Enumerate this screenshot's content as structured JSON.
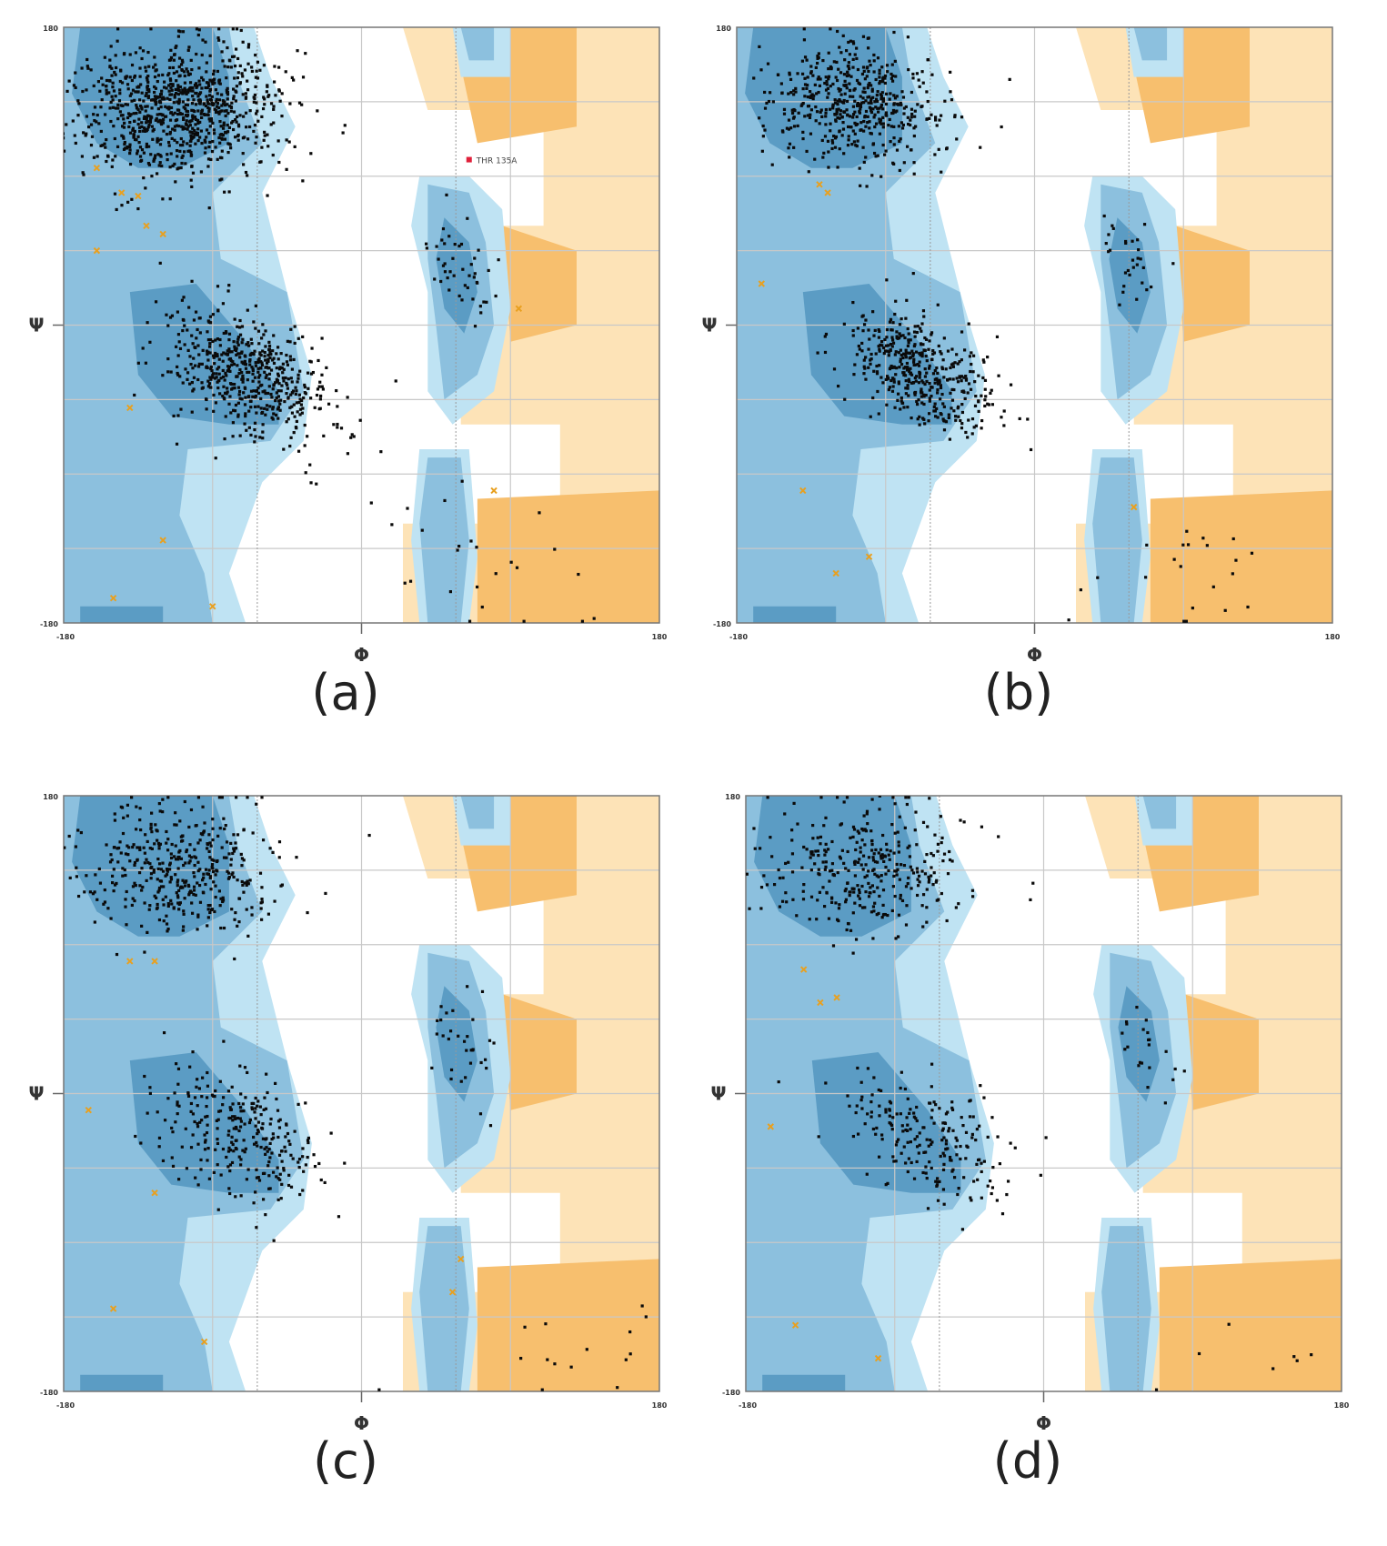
{
  "figure": {
    "panels": [
      {
        "id": "a",
        "caption": "(a)"
      },
      {
        "id": "b",
        "caption": "(b)"
      },
      {
        "id": "c",
        "caption": "(c)"
      },
      {
        "id": "d",
        "caption": "(d)"
      }
    ]
  },
  "colors": {
    "core_favored": "#5b9cc4",
    "allowed": "#8cc0de",
    "generous": "#bfe3f3",
    "gly_favored": "#f7bf6e",
    "gly_allowed": "#fde3b7",
    "point_general": "#0a0a0a",
    "point_glycine": "#e8a020",
    "point_outlier": "#e0203a"
  },
  "chart_data": [
    {
      "type": "scatter",
      "panel": "a",
      "title": "",
      "xlabel": "Φ",
      "ylabel": "Ψ",
      "xlim": [
        -180,
        180
      ],
      "ylim": [
        -180,
        180
      ],
      "xticks": [
        -180,
        180
      ],
      "yticks": [
        -180,
        180
      ],
      "x_tick_labels": [
        "-180",
        "180"
      ],
      "y_tick_labels": [
        "-180",
        "180"
      ],
      "annotations": [
        {
          "text": "THR 135A",
          "x": 65,
          "y": 100
        }
      ],
      "grid": true,
      "regions": "Ramachandran favored/allowed contours (general + glycine)",
      "clusters": [
        {
          "name": "beta",
          "cx": -110,
          "cy": 130,
          "sx": 30,
          "sy": 20,
          "n": 900,
          "seed": 11
        },
        {
          "name": "alpha",
          "cx": -70,
          "cy": -30,
          "sx": 22,
          "sy": 20,
          "n": 550,
          "seed": 12
        },
        {
          "name": "left-alpha",
          "cx": 60,
          "cy": 38,
          "sx": 10,
          "sy": 15,
          "n": 45,
          "seed": 13
        },
        {
          "name": "scatter-low",
          "cx": 90,
          "cy": -150,
          "sx": 40,
          "sy": 25,
          "n": 25,
          "seed": 14
        }
      ],
      "glycine_points": [
        [
          -160,
          95
        ],
        [
          -145,
          80
        ],
        [
          -130,
          60
        ],
        [
          -120,
          55
        ],
        [
          -140,
          -50
        ],
        [
          -120,
          -130
        ],
        [
          -150,
          -165
        ],
        [
          -90,
          -170
        ],
        [
          80,
          -100
        ],
        [
          95,
          10
        ],
        [
          -160,
          45
        ],
        [
          -135,
          78
        ]
      ],
      "outliers": [
        [
          65,
          100
        ]
      ]
    },
    {
      "type": "scatter",
      "panel": "b",
      "title": "",
      "xlabel": "Φ",
      "ylabel": "Ψ",
      "xlim": [
        -180,
        180
      ],
      "ylim": [
        -180,
        180
      ],
      "x_tick_labels": [
        "-180",
        "180"
      ],
      "y_tick_labels": [
        "-180",
        "180"
      ],
      "grid": true,
      "clusters": [
        {
          "name": "beta",
          "cx": -110,
          "cy": 135,
          "sx": 28,
          "sy": 18,
          "n": 520,
          "seed": 21
        },
        {
          "name": "alpha",
          "cx": -68,
          "cy": -28,
          "sx": 20,
          "sy": 18,
          "n": 430,
          "seed": 22
        },
        {
          "name": "left-alpha",
          "cx": 60,
          "cy": 35,
          "sx": 10,
          "sy": 14,
          "n": 30,
          "seed": 23
        },
        {
          "name": "scatter-low",
          "cx": 100,
          "cy": -155,
          "sx": 40,
          "sy": 20,
          "n": 22,
          "seed": 24
        }
      ],
      "glycine_points": [
        [
          -130,
          85
        ],
        [
          -125,
          80
        ],
        [
          -165,
          25
        ],
        [
          -140,
          -100
        ],
        [
          -120,
          -150
        ],
        [
          -100,
          -140
        ],
        [
          60,
          -110
        ]
      ],
      "outliers": []
    },
    {
      "type": "scatter",
      "panel": "c",
      "title": "",
      "xlabel": "Φ",
      "ylabel": "Ψ",
      "xlim": [
        -180,
        180
      ],
      "ylim": [
        -180,
        180
      ],
      "x_tick_labels": [
        "-180",
        "180"
      ],
      "y_tick_labels": [
        "-180",
        "180"
      ],
      "grid": true,
      "clusters": [
        {
          "name": "beta",
          "cx": -110,
          "cy": 135,
          "sx": 30,
          "sy": 20,
          "n": 420,
          "seed": 31
        },
        {
          "name": "alpha",
          "cx": -72,
          "cy": -28,
          "sx": 22,
          "sy": 20,
          "n": 280,
          "seed": 32
        },
        {
          "name": "left-alpha",
          "cx": 62,
          "cy": 30,
          "sx": 10,
          "sy": 16,
          "n": 32,
          "seed": 33
        },
        {
          "name": "scatter-low",
          "cx": 110,
          "cy": -160,
          "sx": 40,
          "sy": 15,
          "n": 15,
          "seed": 34
        }
      ],
      "glycine_points": [
        [
          -140,
          80
        ],
        [
          -125,
          80
        ],
        [
          -165,
          -10
        ],
        [
          -125,
          -60
        ],
        [
          -150,
          -130
        ],
        [
          -95,
          -150
        ],
        [
          60,
          -100
        ],
        [
          55,
          -120
        ]
      ],
      "outliers": []
    },
    {
      "type": "scatter",
      "panel": "d",
      "title": "",
      "xlabel": "Φ",
      "ylabel": "Ψ",
      "xlim": [
        -180,
        180
      ],
      "ylim": [
        -180,
        180
      ],
      "x_tick_labels": [
        "-180",
        "180"
      ],
      "y_tick_labels": [
        "-180",
        "180"
      ],
      "grid": true,
      "clusters": [
        {
          "name": "beta",
          "cx": -110,
          "cy": 135,
          "sx": 30,
          "sy": 20,
          "n": 340,
          "seed": 41
        },
        {
          "name": "alpha",
          "cx": -70,
          "cy": -28,
          "sx": 22,
          "sy": 20,
          "n": 210,
          "seed": 42
        },
        {
          "name": "left-alpha",
          "cx": 62,
          "cy": 28,
          "sx": 10,
          "sy": 16,
          "n": 22,
          "seed": 43
        },
        {
          "name": "scatter-low",
          "cx": 130,
          "cy": -165,
          "sx": 35,
          "sy": 12,
          "n": 8,
          "seed": 44
        }
      ],
      "glycine_points": [
        [
          -145,
          75
        ],
        [
          -135,
          55
        ],
        [
          -125,
          58
        ],
        [
          -165,
          -20
        ],
        [
          -150,
          -140
        ],
        [
          -100,
          -160
        ]
      ],
      "outliers": []
    }
  ]
}
